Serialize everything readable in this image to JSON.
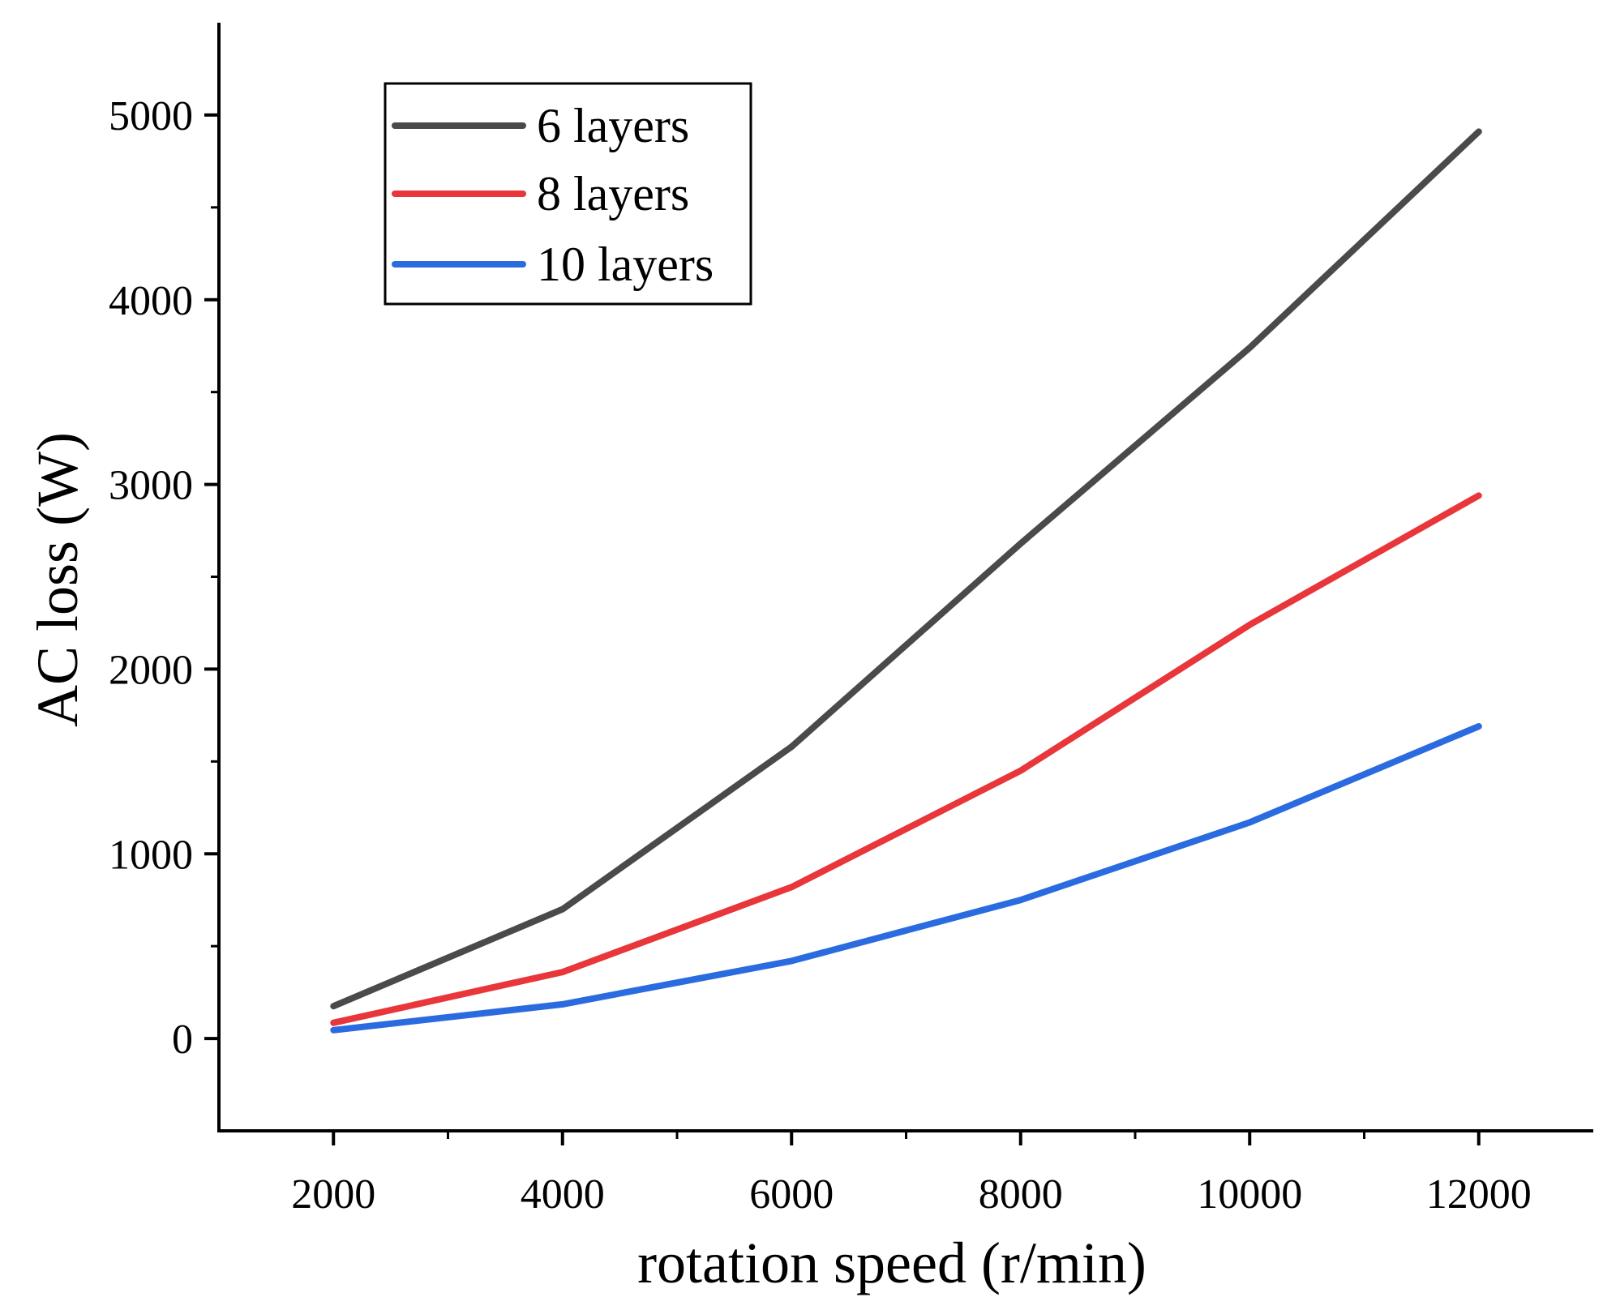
{
  "chart_data": {
    "type": "line",
    "title": "",
    "xlabel": "rotation speed (r/min)",
    "ylabel": "AC loss (W)",
    "x": [
      2000,
      4000,
      6000,
      8000,
      10000,
      12000
    ],
    "xlim": [
      1000,
      13000
    ],
    "ylim": [
      -500,
      5500
    ],
    "xticks": [
      2000,
      4000,
      6000,
      8000,
      10000,
      12000
    ],
    "xtick_labels": [
      "2000",
      "4000",
      "6000",
      "8000",
      "10000",
      "12000"
    ],
    "xminor": [
      3000,
      5000,
      7000,
      9000,
      11000
    ],
    "yticks": [
      0,
      1000,
      2000,
      3000,
      4000,
      5000
    ],
    "ytick_labels": [
      "0",
      "1000",
      "2000",
      "3000",
      "4000",
      "5000"
    ],
    "yminor": [
      500,
      1500,
      2500,
      3500,
      4500
    ],
    "legend_position": "top-left",
    "grid": false,
    "series": [
      {
        "name": "6 layers",
        "color": "#4a4a4a",
        "values": [
          175,
          700,
          1580,
          2680,
          3740,
          4910
        ]
      },
      {
        "name": "8 layers",
        "color": "#e8363b",
        "values": [
          85,
          360,
          820,
          1450,
          2240,
          2940
        ]
      },
      {
        "name": "10 layers",
        "color": "#2b6be0",
        "values": [
          45,
          185,
          420,
          750,
          1170,
          1690
        ]
      }
    ]
  }
}
